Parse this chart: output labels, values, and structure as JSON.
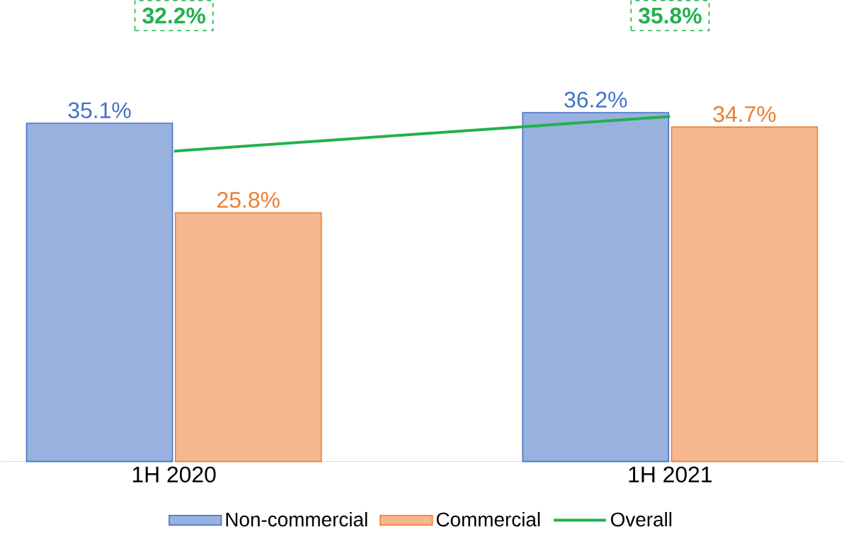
{
  "chart_data": {
    "type": "bar",
    "categories": [
      "1H 2020",
      "1H 2021"
    ],
    "series": [
      {
        "name": "Non-commercial",
        "color": "#4472c4",
        "values": [
          35.1,
          36.2
        ],
        "value_labels": [
          "35.1%",
          "36.2%"
        ]
      },
      {
        "name": "Commercial",
        "color": "#ed7d31",
        "values": [
          25.8,
          34.7
        ],
        "value_labels": [
          "25.8%",
          "34.7%"
        ]
      },
      {
        "name": "Overall",
        "type": "line",
        "color": "#22b14c",
        "values": [
          32.2,
          35.8
        ],
        "value_labels": [
          "32.2%",
          "35.8%"
        ]
      }
    ],
    "legend": "bottom"
  }
}
